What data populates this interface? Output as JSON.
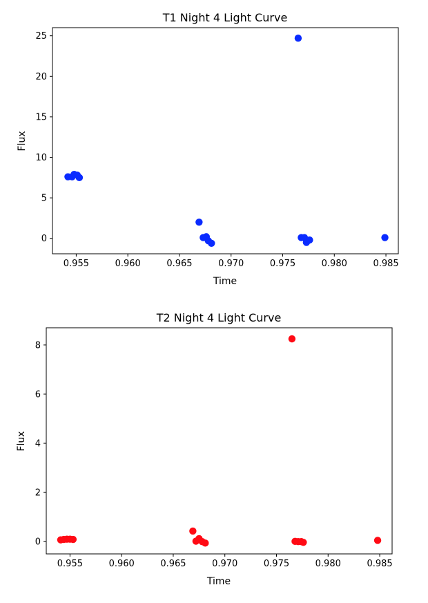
{
  "chart_data": [
    {
      "type": "scatter",
      "title": "T1 Night 4 Light Curve",
      "xlabel": "Time",
      "ylabel": "Flux",
      "xlim": [
        0.9527,
        0.9862
      ],
      "ylim": [
        -1.9,
        26.0
      ],
      "xticks": [
        0.955,
        0.96,
        0.965,
        0.97,
        0.975,
        0.98,
        0.985
      ],
      "xtick_labels": [
        "0.955",
        "0.960",
        "0.965",
        "0.970",
        "0.975",
        "0.980",
        "0.985"
      ],
      "yticks": [
        0,
        5,
        10,
        15,
        20,
        25
      ],
      "ytick_labels": [
        "0",
        "5",
        "10",
        "15",
        "20",
        "25"
      ],
      "grid": false,
      "marker_color": "#0a2bff",
      "series": [
        {
          "x": [
            0.9542,
            0.9546,
            0.9548,
            0.9551,
            0.9553,
            0.9669,
            0.9673,
            0.9676,
            0.9678,
            0.9681,
            0.9765,
            0.9768,
            0.9771,
            0.9773,
            0.9776,
            0.9849
          ],
          "y": [
            7.6,
            7.6,
            7.9,
            7.8,
            7.5,
            2.0,
            0.1,
            0.2,
            -0.3,
            -0.6,
            24.7,
            0.1,
            0.1,
            -0.5,
            -0.2,
            0.1
          ]
        }
      ]
    },
    {
      "type": "scatter",
      "title": "T2 Night 4 Light Curve",
      "xlabel": "Time",
      "ylabel": "Flux",
      "xlim": [
        0.9527,
        0.9862
      ],
      "ylim": [
        -0.5,
        8.7
      ],
      "xticks": [
        0.955,
        0.96,
        0.965,
        0.97,
        0.975,
        0.98,
        0.985
      ],
      "xtick_labels": [
        "0.955",
        "0.960",
        "0.965",
        "0.970",
        "0.975",
        "0.980",
        "0.985"
      ],
      "yticks": [
        0,
        2,
        4,
        6,
        8
      ],
      "ytick_labels": [
        "0",
        "2",
        "4",
        "6",
        "8"
      ],
      "grid": false,
      "marker_color": "#ff0a14",
      "series": [
        {
          "x": [
            0.9541,
            0.9544,
            0.9547,
            0.955,
            0.9553,
            0.9669,
            0.9672,
            0.9675,
            0.9678,
            0.9681,
            0.9765,
            0.9768,
            0.9771,
            0.9774,
            0.9776,
            0.9848
          ],
          "y": [
            0.07,
            0.09,
            0.1,
            0.1,
            0.09,
            0.43,
            0.02,
            0.12,
            0.0,
            -0.06,
            8.25,
            0.01,
            0.0,
            0.0,
            -0.03,
            0.05
          ]
        }
      ]
    }
  ]
}
